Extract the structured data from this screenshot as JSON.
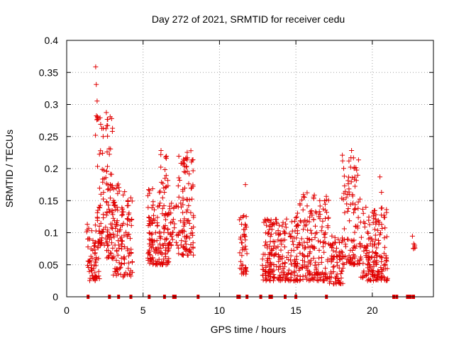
{
  "chart_data": {
    "type": "scatter",
    "title": "Day 272 of 2021, SRMTID for receiver cedu",
    "xlabel": "GPS time / hours",
    "ylabel": "SRMTID / TECUs",
    "xlim": [
      0,
      24
    ],
    "ylim": [
      0,
      0.4
    ],
    "xticks": [
      0,
      5,
      10,
      15,
      20
    ],
    "yticks": [
      0,
      0.05,
      0.1,
      0.15,
      0.2,
      0.25,
      0.3,
      0.35,
      0.4
    ],
    "xtick_labels": [
      "0",
      "5",
      "10",
      "15",
      "20"
    ],
    "ytick_labels": [
      "0",
      "0.05",
      "0.1",
      "0.15",
      "0.2",
      "0.25",
      "0.3",
      "0.35",
      "0.4"
    ],
    "grid": true,
    "marker": "+",
    "color": "#e00000",
    "zero_markers_x": [
      1.4,
      2.8,
      3.4,
      4.2,
      5.4,
      6.4,
      7.0,
      7.1,
      8.6,
      11.2,
      11.3,
      11.8,
      12.7,
      13.3,
      13.4,
      14.3,
      15.0,
      17.0,
      21.4,
      21.6,
      22.3,
      22.4,
      22.5,
      22.7
    ],
    "clusters": [
      {
        "x": [
          1.3,
          2.2
        ],
        "ymin": 0.025,
        "ymax": 0.115,
        "n": 70
      },
      {
        "x": [
          1.8,
          2.0
        ],
        "ymin": 0.25,
        "ymax": 0.375,
        "n": 6
      },
      {
        "x": [
          2.0,
          2.7
        ],
        "ymin": 0.08,
        "ymax": 0.31,
        "n": 70
      },
      {
        "x": [
          2.6,
          3.0
        ],
        "ymin": 0.06,
        "ymax": 0.32,
        "n": 50
      },
      {
        "x": [
          3.0,
          4.3
        ],
        "ymin": 0.03,
        "ymax": 0.18,
        "n": 130
      },
      {
        "x": [
          5.3,
          6.0
        ],
        "ymin": 0.05,
        "ymax": 0.17,
        "n": 80
      },
      {
        "x": [
          6.0,
          6.7
        ],
        "ymin": 0.05,
        "ymax": 0.23,
        "n": 80
      },
      {
        "x": [
          6.6,
          7.3
        ],
        "ymin": 0.08,
        "ymax": 0.15,
        "n": 35
      },
      {
        "x": [
          7.3,
          8.3
        ],
        "ymin": 0.065,
        "ymax": 0.23,
        "n": 110
      },
      {
        "x": [
          11.3,
          11.8
        ],
        "ymin": 0.035,
        "ymax": 0.13,
        "n": 45
      },
      {
        "x": [
          12.8,
          15.0
        ],
        "ymin": 0.025,
        "ymax": 0.125,
        "n": 200
      },
      {
        "x": [
          15.0,
          17.2
        ],
        "ymin": 0.025,
        "ymax": 0.165,
        "n": 200
      },
      {
        "x": [
          17.2,
          18.1
        ],
        "ymin": 0.02,
        "ymax": 0.1,
        "n": 70
      },
      {
        "x": [
          18.0,
          19.2
        ],
        "ymin": 0.05,
        "ymax": 0.23,
        "n": 110
      },
      {
        "x": [
          19.2,
          21.0
        ],
        "ymin": 0.025,
        "ymax": 0.14,
        "n": 180
      },
      {
        "x": [
          22.6,
          22.8
        ],
        "ymin": 0.075,
        "ymax": 0.125,
        "n": 6
      }
    ],
    "outliers": [
      {
        "x": 11.7,
        "y": 0.175
      },
      {
        "x": 20.5,
        "y": 0.187
      },
      {
        "x": 20.6,
        "y": 0.163
      },
      {
        "x": 22.7,
        "y": 0.075
      }
    ]
  }
}
